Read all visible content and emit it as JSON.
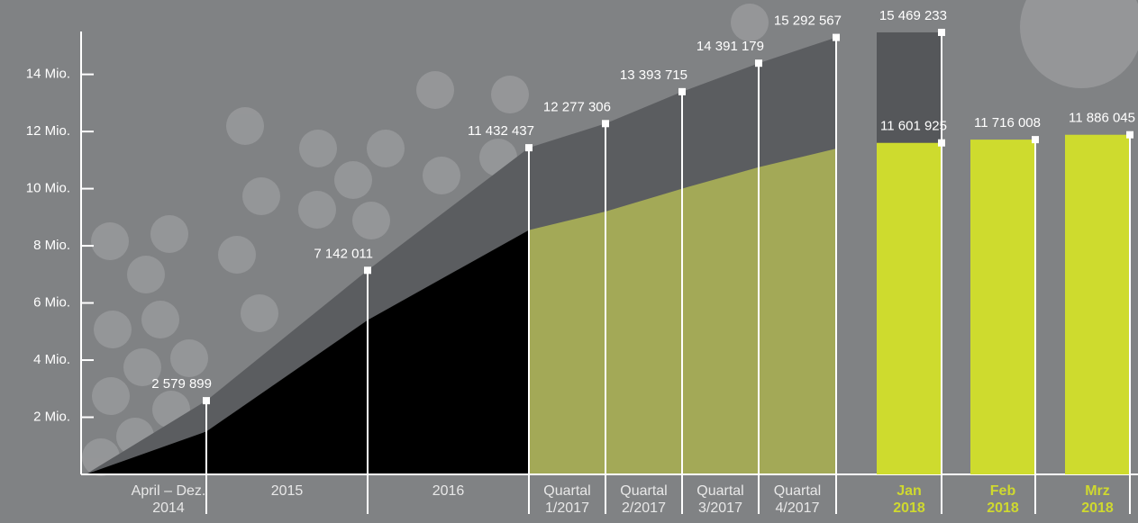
{
  "chart_data": [
    {
      "type": "area",
      "categories": [
        [
          "April – Dez.",
          "2014"
        ],
        [
          "2015"
        ],
        [
          "2016"
        ],
        [
          "Quartal",
          "1/2017"
        ],
        [
          "Quartal",
          "2/2017"
        ],
        [
          "Quartal",
          "3/2017"
        ],
        [
          "Quartal",
          "4/2017"
        ]
      ],
      "series": [
        {
          "color": "#5b5d60",
          "values": [
            2579899,
            7142011,
            11432437,
            12277306,
            13393715,
            14391179,
            15292567
          ],
          "value_labels": [
            "2 579 899",
            "7 142 011",
            "11 432 437",
            "12 277 306",
            "13 393 715",
            "14 391 179",
            "15 292 567"
          ]
        },
        {
          "colors": [
            "#000000",
            "#000000",
            "#000000",
            "#a3a957",
            "#a3a957",
            "#a3a957",
            "#a3a957"
          ],
          "values": [
            1500000,
            5400000,
            8550000,
            9200000,
            10000000,
            10750000,
            11400000
          ]
        }
      ],
      "ylim": [
        0,
        15500000
      ],
      "yticks": [
        {
          "value": 2000000,
          "label": "2 Mio."
        },
        {
          "value": 4000000,
          "label": "4 Mio."
        },
        {
          "value": 6000000,
          "label": "6 Mio."
        },
        {
          "value": 8000000,
          "label": "8 Mio."
        },
        {
          "value": 10000000,
          "label": "10 Mio."
        },
        {
          "value": 12000000,
          "label": "12 Mio."
        },
        {
          "value": 14000000,
          "label": "14 Mio."
        }
      ]
    },
    {
      "type": "bar",
      "categories": [
        [
          "Jan",
          "2018"
        ],
        [
          "Feb",
          "2018"
        ],
        [
          "Mrz",
          "2018"
        ]
      ],
      "series": [
        {
          "color": "#55575a",
          "values": [
            15469233,
            null,
            null
          ],
          "value_labels": [
            "15 469 233",
            null,
            null
          ]
        },
        {
          "color": "#cedb2e",
          "values": [
            11601925,
            11716008,
            11886045
          ],
          "value_labels": [
            "11 601 925",
            "11 716 008",
            "11 886 045"
          ]
        }
      ],
      "ylim": [
        0,
        15500000
      ]
    }
  ]
}
